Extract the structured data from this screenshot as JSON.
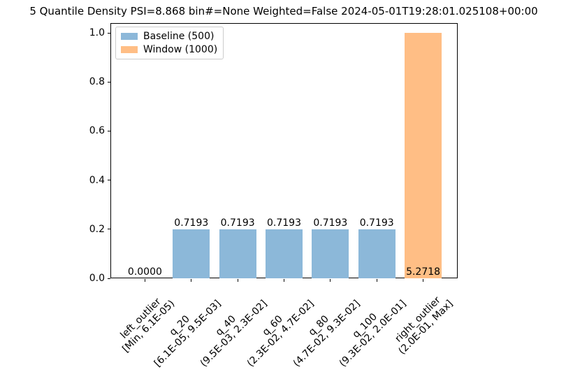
{
  "chart_data": {
    "type": "bar",
    "title": "5 Quantile Density PSI=8.868 bin#=None Weighted=False 2024-05-01T19:28:01.025108+00:00",
    "categories": [
      {
        "name": "left_outlier",
        "range": "[Min, 6.1E-05)"
      },
      {
        "name": "q_20",
        "range": "[6.1E-05, 9.5E-03]"
      },
      {
        "name": "q_40",
        "range": "(9.5E-03, 2.3E-02]"
      },
      {
        "name": "q_60",
        "range": "(2.3E-02, 4.7E-02]"
      },
      {
        "name": "q_80",
        "range": "(4.7E-02, 9.3E-02]"
      },
      {
        "name": "q_100",
        "range": "(9.3E-02, 2.0E-01]"
      },
      {
        "name": "right_outlier",
        "range": "(2.0E-01, Max]"
      }
    ],
    "series": [
      {
        "name": "Baseline (500)",
        "color": "#8cb8d9",
        "values": [
          0,
          0.2,
          0.2,
          0.2,
          0.2,
          0.2,
          0
        ]
      },
      {
        "name": "Window (1000)",
        "color": "#ffbe85",
        "values": [
          0,
          0,
          0,
          0,
          0,
          0,
          1.0
        ]
      }
    ],
    "bar_labels": [
      "0.0000",
      "0.7193",
      "0.7193",
      "0.7193",
      "0.7193",
      "0.7193",
      "5.2718"
    ],
    "yticks": [
      0.0,
      0.2,
      0.4,
      0.6,
      0.8,
      1.0
    ],
    "ylim": [
      0,
      1.04
    ],
    "xlabel": "",
    "ylabel": "",
    "grid": false,
    "legend_position": "upper left"
  },
  "colors": {
    "axis": "#000000",
    "text": "#000000",
    "legend_border": "#cccccc",
    "background": "#ffffff",
    "baseline_bar": "#8cb8d9",
    "window_bar": "#ffbe85"
  }
}
